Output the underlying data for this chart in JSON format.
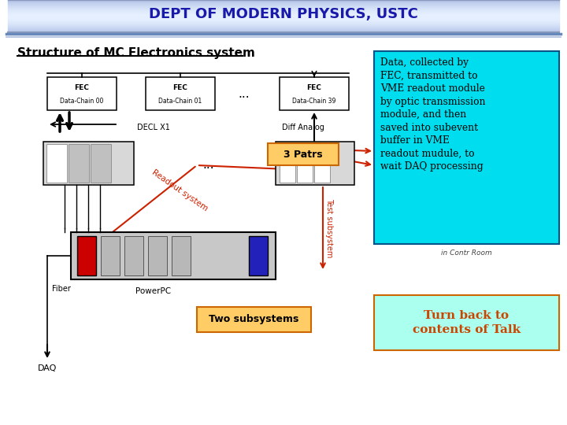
{
  "title": "DEPT OF MODERN PHYSICS, USTC",
  "subtitle": "Structure of MC Electronics system",
  "cyan_box_text": "Data, collected by\nFEC, transmitted to\nVME readout module\nby optic transmission\nmodule, and then\nsaved into subevent\nbuffer in VME\nreadout mudule, to\nwait DAQ processing",
  "orange_box1_text": "3 Patrs",
  "orange_box2_text": "Two subsystems",
  "turn_back_text": "Turn back to\ncontents of Talk",
  "turn_back_text_color": "#CC4400",
  "fec00": "FEC\nData-Chain 00",
  "fec01": "FEC\nData-Chain 01",
  "fec39": "FEC\nData-Chain 39",
  "decl_label": "DECL X1",
  "diff_label": "Diff Analog",
  "fiber_label": "Fiber",
  "powerpc_label": "PowerPC",
  "daq_label": "DAQ",
  "readout_label": "Readout system",
  "test_label": "Test subsystem",
  "in_contr_label": "in Contr Room",
  "dots": "...",
  "header_grad_top": "#dde8f8",
  "header_grad_mid": "#aabbd8",
  "header_grad_bot": "#c8d8f0"
}
